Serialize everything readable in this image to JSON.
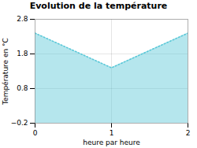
{
  "chart_data": {
    "type": "area",
    "title": "Evolution de la température",
    "x_label": "heure par heure",
    "y_label": "Température en °C",
    "x": [
      0,
      1,
      2
    ],
    "series": [
      {
        "values": [
          2.4,
          1.4,
          2.4
        ],
        "color": "#5bc8d8",
        "line_style": "dotted"
      }
    ],
    "xlim": [
      0,
      2
    ],
    "xticks": [
      0,
      1,
      2
    ],
    "ylim": [
      -0.2,
      2.8
    ],
    "yticks": [
      -0.2,
      0.8,
      1.8,
      2.8
    ],
    "grid": true
  }
}
